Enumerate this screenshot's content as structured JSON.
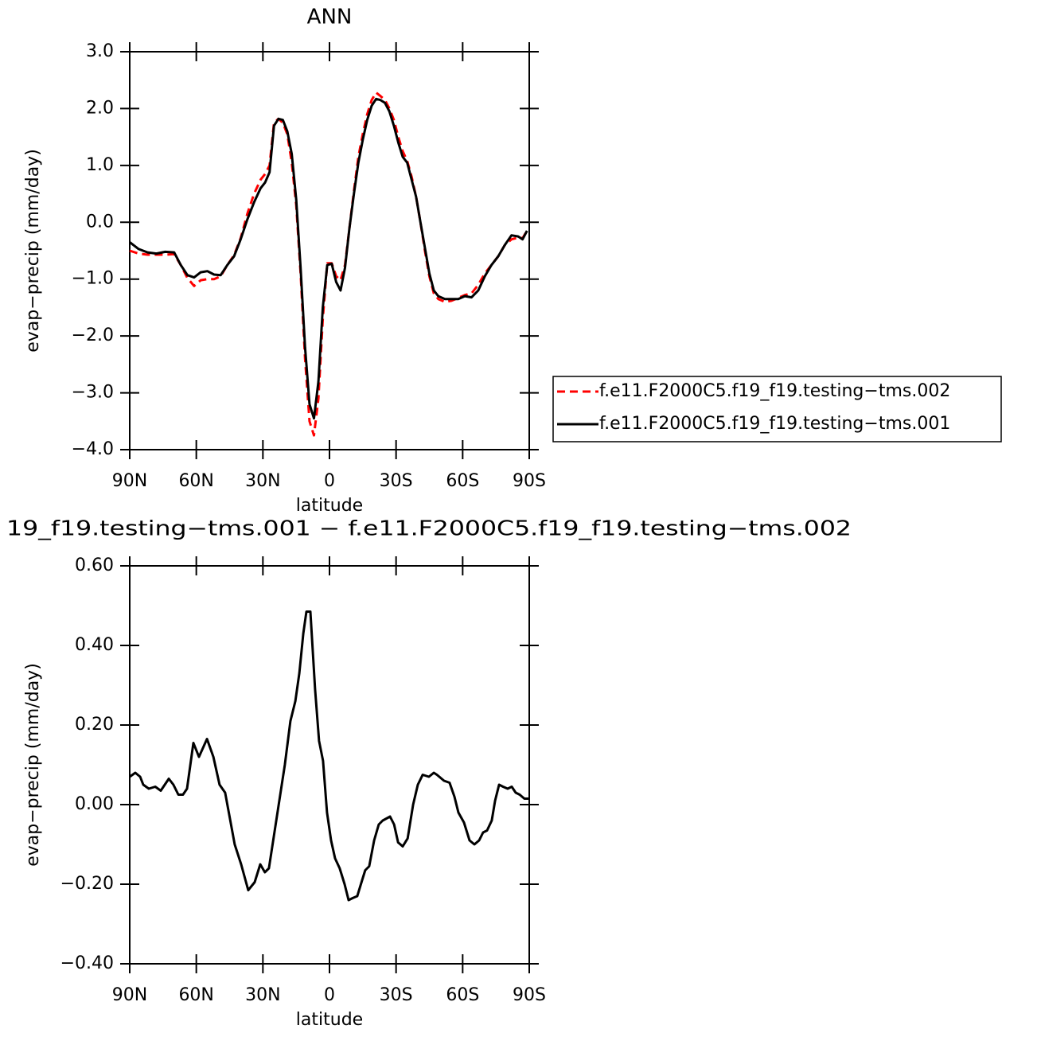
{
  "chart_data": [
    {
      "type": "line",
      "title": "ANN",
      "x_label": "latitude",
      "y_label": "evap−precip (mm/day)",
      "x": [
        90,
        86,
        82,
        78,
        74,
        70,
        67,
        64,
        61,
        58,
        55,
        52,
        49,
        46,
        43,
        40,
        37,
        34,
        31,
        29,
        27,
        25,
        23,
        21,
        19,
        17,
        15,
        13,
        11,
        9,
        7,
        5,
        3,
        1,
        -1,
        -3,
        -5,
        -7,
        -9,
        -11,
        -13,
        -15,
        -17,
        -19,
        -21,
        -23,
        -25,
        -27,
        -29,
        -31,
        -33,
        -35,
        -37,
        -39,
        -41,
        -43,
        -45,
        -47,
        -49,
        -52,
        -55,
        -58,
        -61,
        -64,
        -67,
        -70,
        -73,
        -76,
        -79,
        -82,
        -85,
        -87,
        -89
      ],
      "series": [
        {
          "name": "f.e11.F2000C5.f19_f19.testing−tms.002",
          "color": "#ff0000",
          "dashed": true,
          "values": [
            -0.5,
            -0.55,
            -0.57,
            -0.57,
            -0.57,
            -0.56,
            -0.75,
            -0.98,
            -1.12,
            -1.02,
            -1.0,
            -1.0,
            -0.95,
            -0.75,
            -0.58,
            -0.28,
            0.15,
            0.5,
            0.75,
            0.85,
            1.0,
            1.75,
            1.82,
            1.75,
            1.55,
            1.05,
            0.3,
            -0.9,
            -2.4,
            -3.5,
            -3.75,
            -3.1,
            -1.7,
            -0.72,
            -0.72,
            -0.95,
            -1.02,
            -0.75,
            -0.1,
            0.55,
            1.15,
            1.55,
            1.9,
            2.15,
            2.28,
            2.22,
            2.15,
            2.0,
            1.8,
            1.5,
            1.25,
            1.08,
            0.8,
            0.45,
            0.0,
            -0.5,
            -0.95,
            -1.25,
            -1.35,
            -1.4,
            -1.38,
            -1.33,
            -1.28,
            -1.25,
            -1.1,
            -0.9,
            -0.75,
            -0.6,
            -0.4,
            -0.3,
            -0.27,
            -0.28,
            -0.15
          ]
        },
        {
          "name": "f.e11.F2000C5.f19_f19.testing−tms.001",
          "color": "#000000",
          "dashed": false,
          "values": [
            -0.35,
            -0.47,
            -0.53,
            -0.55,
            -0.52,
            -0.53,
            -0.75,
            -0.93,
            -0.97,
            -0.88,
            -0.86,
            -0.92,
            -0.93,
            -0.75,
            -0.6,
            -0.3,
            0.05,
            0.35,
            0.6,
            0.7,
            0.88,
            1.7,
            1.82,
            1.8,
            1.6,
            1.2,
            0.4,
            -0.8,
            -2.2,
            -3.2,
            -3.45,
            -2.8,
            -1.5,
            -0.75,
            -0.73,
            -1.05,
            -1.2,
            -0.8,
            -0.1,
            0.5,
            1.05,
            1.45,
            1.8,
            2.05,
            2.17,
            2.15,
            2.1,
            1.95,
            1.7,
            1.4,
            1.15,
            1.05,
            0.75,
            0.45,
            0.0,
            -0.45,
            -0.9,
            -1.2,
            -1.3,
            -1.35,
            -1.35,
            -1.35,
            -1.3,
            -1.32,
            -1.2,
            -0.95,
            -0.75,
            -0.6,
            -0.4,
            -0.23,
            -0.25,
            -0.3,
            -0.15
          ]
        }
      ],
      "xlim": [
        90,
        -90
      ],
      "xticks": [
        {
          "value": 90,
          "label": "90N"
        },
        {
          "value": 60,
          "label": "60N"
        },
        {
          "value": 30,
          "label": "30N"
        },
        0,
        {
          "value": -30,
          "label": "30S"
        },
        {
          "value": -60,
          "label": "60S"
        },
        {
          "value": -90,
          "label": "90S"
        }
      ],
      "ylim": [
        -4,
        3
      ],
      "yticks": [
        {
          "value": -4,
          "label": "−4.0"
        },
        {
          "value": -3,
          "label": "−3.0"
        },
        {
          "value": -2,
          "label": "−2.0"
        },
        {
          "value": -1,
          "label": "−1.0"
        },
        {
          "value": 0,
          "label": "0.0"
        },
        {
          "value": 1,
          "label": "1.0"
        },
        {
          "value": 2,
          "label": "2.0"
        },
        {
          "value": 3,
          "label": "3.0"
        }
      ],
      "legend": "outside right"
    },
    {
      "type": "line",
      "title": "19_f19.testing−tms.001 − f.e11.F2000C5.f19_f19.testing−tms.002",
      "x_label": "latitude",
      "y_label": "evap−precip (mm/day)",
      "x": [
        90,
        87.5,
        85.3,
        83.9,
        81.4,
        78.5,
        76.0,
        72.4,
        70.3,
        68.1,
        66.0,
        64.2,
        61.3,
        58.8,
        55.2,
        52.3,
        49.5,
        47.0,
        42.7,
        39.8,
        36.6,
        33.7,
        31.2,
        29.1,
        27.3,
        23.7,
        20.1,
        17.6,
        15.4,
        13.6,
        11.8,
        10.4,
        8.6,
        6.5,
        4.7,
        2.9,
        1.1,
        -0.7,
        -2.5,
        -4.6,
        -6.8,
        -8.6,
        -10.4,
        -12.5,
        -14.7,
        -16.1,
        -17.9,
        -20.1,
        -22.2,
        -24.0,
        -27.3,
        -29.1,
        -30.9,
        -33.0,
        -35.2,
        -37.7,
        -39.8,
        -42.0,
        -44.8,
        -47.0,
        -48.4,
        -51.6,
        -54.1,
        -56.3,
        -58.1,
        -60.6,
        -63.1,
        -65.3,
        -67.4,
        -69.2,
        -71.0,
        -73.1,
        -74.6,
        -76.4,
        -78.2,
        -80.3,
        -82.1,
        -83.9,
        -85.7,
        -87.8,
        -90
      ],
      "values": [
        0.07,
        0.08,
        0.07,
        0.05,
        0.04,
        0.045,
        0.035,
        0.065,
        0.05,
        0.025,
        0.025,
        0.04,
        0.155,
        0.12,
        0.165,
        0.12,
        0.05,
        0.03,
        -0.1,
        -0.15,
        -0.215,
        -0.195,
        -0.15,
        -0.17,
        -0.16,
        -0.03,
        0.1,
        0.21,
        0.26,
        0.33,
        0.43,
        0.485,
        0.485,
        0.29,
        0.16,
        0.11,
        -0.02,
        -0.09,
        -0.135,
        -0.16,
        -0.2,
        -0.24,
        -0.235,
        -0.23,
        -0.19,
        -0.165,
        -0.155,
        -0.09,
        -0.05,
        -0.04,
        -0.03,
        -0.05,
        -0.095,
        -0.105,
        -0.085,
        0.0,
        0.05,
        0.075,
        0.07,
        0.08,
        0.075,
        0.06,
        0.055,
        0.02,
        -0.02,
        -0.045,
        -0.09,
        -0.1,
        -0.09,
        -0.07,
        -0.065,
        -0.04,
        0.01,
        0.05,
        0.045,
        0.04,
        0.045,
        0.03,
        0.025,
        0.015,
        0.015
      ],
      "color": "#000000",
      "xlim": [
        90,
        -90
      ],
      "xticks": [
        {
          "value": 90,
          "label": "90N"
        },
        {
          "value": 60,
          "label": "60N"
        },
        {
          "value": 30,
          "label": "30N"
        },
        0,
        {
          "value": -30,
          "label": "30S"
        },
        {
          "value": -60,
          "label": "60S"
        },
        {
          "value": -90,
          "label": "90S"
        }
      ],
      "ylim": [
        -0.4,
        0.6
      ],
      "yticks": [
        {
          "value": -0.4,
          "label": "−0.40"
        },
        {
          "value": -0.2,
          "label": "−0.20"
        },
        {
          "value": 0,
          "label": "0.00"
        },
        {
          "value": 0.2,
          "label": "0.20"
        },
        {
          "value": 0.4,
          "label": "0.40"
        },
        {
          "value": 0.6,
          "label": "0.60"
        }
      ]
    }
  ]
}
